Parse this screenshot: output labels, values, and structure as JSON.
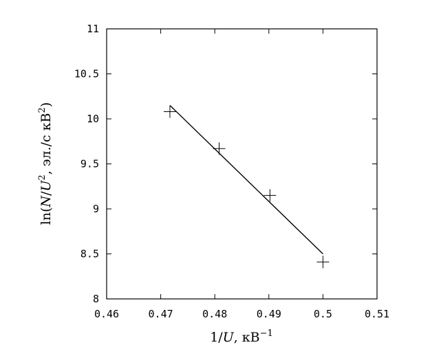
{
  "chart_data": {
    "type": "scatter",
    "xlabel_parts": {
      "main": "1/",
      "italic": "U",
      "unit": ", кВ",
      "sup": "−1"
    },
    "ylabel_parts": {
      "func": "ln(",
      "italic_n": "N",
      "slash": "/",
      "italic_u": "U",
      "sup1": "2",
      "unit": ", эл./с кВ",
      "sup2": "2",
      "close": ")"
    },
    "xlim": [
      0.46,
      0.51
    ],
    "ylim": [
      8,
      11
    ],
    "xticks": [
      0.46,
      0.47,
      0.48,
      0.49,
      0.5,
      0.51
    ],
    "xtick_labels": [
      "0.46",
      "0.47",
      "0.48",
      "0.49",
      "0.5",
      "0.51"
    ],
    "yticks": [
      8,
      8.5,
      9,
      9.5,
      10,
      10.5,
      11
    ],
    "ytick_labels": [
      "8",
      "8.5",
      "9",
      "9.5",
      "10",
      "10.5",
      "11"
    ],
    "grid": false,
    "series": [
      {
        "marker": "+",
        "x": [
          0.4717,
          0.4808,
          0.4902,
          0.5
        ],
        "y": [
          10.08,
          9.67,
          9.15,
          8.41
        ]
      }
    ],
    "fit_line": {
      "x": [
        0.4717,
        0.5
      ],
      "y": [
        10.15,
        8.5
      ]
    }
  }
}
